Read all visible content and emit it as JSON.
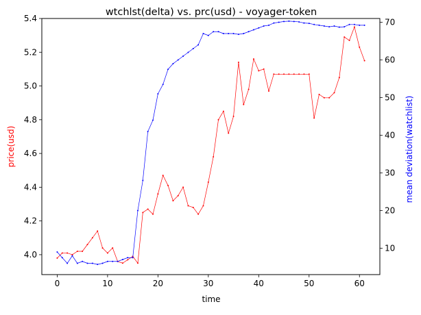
{
  "chart_data": {
    "type": "line",
    "title": "wtchlst(delta) vs. prc(usd) - voyager-token",
    "xlabel": "time",
    "ylabel_left": "price(usd)",
    "ylabel_right": "mean deviation(watchlist)",
    "xlim": [
      -3.05,
      64.05
    ],
    "ylim_left": [
      3.882,
      5.4
    ],
    "ylim_right": [
      3.0,
      71.0
    ],
    "x_ticks": [
      0,
      10,
      20,
      30,
      40,
      50,
      60
    ],
    "y_ticks_left": [
      4.0,
      4.2,
      4.4,
      4.6,
      4.8,
      5.0,
      5.2,
      5.4
    ],
    "y_ticks_right": [
      10,
      20,
      30,
      40,
      50,
      60,
      70
    ],
    "grid": false,
    "series": [
      {
        "axis": "left",
        "color": "#ff0000",
        "x": [
          0,
          1,
          2,
          3,
          4,
          5,
          6,
          7,
          8,
          9,
          10,
          11,
          12,
          13,
          14,
          15,
          16,
          17,
          18,
          19,
          20,
          21,
          22,
          23,
          24,
          25,
          26,
          27,
          28,
          29,
          30,
          31,
          32,
          33,
          34,
          35,
          36,
          37,
          38,
          39,
          40,
          41,
          42,
          43,
          44,
          45,
          46,
          47,
          48,
          49,
          50,
          51,
          52,
          53,
          54,
          55,
          56,
          57,
          58,
          59,
          60,
          61
        ],
        "values": [
          3.98,
          4.01,
          4.01,
          4.0,
          4.02,
          4.02,
          4.06,
          4.1,
          4.14,
          4.04,
          4.01,
          4.04,
          3.96,
          3.95,
          3.97,
          3.99,
          3.95,
          4.25,
          4.27,
          4.24,
          4.36,
          4.47,
          4.41,
          4.32,
          4.35,
          4.4,
          4.29,
          4.28,
          4.24,
          4.29,
          4.43,
          4.58,
          4.8,
          4.85,
          4.72,
          4.82,
          5.14,
          4.89,
          4.98,
          5.16,
          5.09,
          5.1,
          4.97,
          5.07,
          5.07,
          5.07,
          5.07,
          5.07,
          5.07,
          5.07,
          5.07,
          4.81,
          4.95,
          4.93,
          4.93,
          4.96,
          5.05,
          5.29,
          5.27,
          5.35,
          5.23,
          5.15
        ]
      },
      {
        "axis": "right",
        "color": "#0000ff",
        "x": [
          0,
          1,
          2,
          3,
          4,
          5,
          6,
          7,
          8,
          9,
          10,
          11,
          12,
          13,
          14,
          15,
          16,
          17,
          18,
          19,
          20,
          21,
          22,
          23,
          24,
          25,
          26,
          27,
          28,
          29,
          30,
          31,
          32,
          33,
          34,
          35,
          36,
          37,
          38,
          39,
          40,
          41,
          42,
          43,
          44,
          45,
          46,
          47,
          48,
          49,
          50,
          51,
          52,
          53,
          54,
          55,
          56,
          57,
          58,
          59,
          60,
          61
        ],
        "values": [
          9.0,
          7.5,
          6.0,
          8.0,
          6.0,
          6.5,
          6.0,
          6.0,
          5.7,
          6.0,
          6.5,
          6.5,
          6.5,
          7.0,
          7.5,
          7.5,
          20.0,
          28.0,
          41.0,
          44.0,
          51.0,
          53.5,
          57.5,
          59.0,
          60.0,
          61.0,
          62.0,
          63.0,
          64.0,
          67.0,
          66.5,
          67.5,
          67.5,
          67.0,
          67.0,
          67.0,
          66.8,
          67.0,
          67.5,
          68.0,
          68.5,
          69.0,
          69.2,
          69.8,
          70.0,
          70.2,
          70.3,
          70.2,
          70.1,
          69.8,
          69.7,
          69.4,
          69.2,
          69.0,
          68.8,
          69.0,
          68.7,
          68.8,
          69.4,
          69.4,
          69.2,
          69.2
        ]
      }
    ]
  }
}
